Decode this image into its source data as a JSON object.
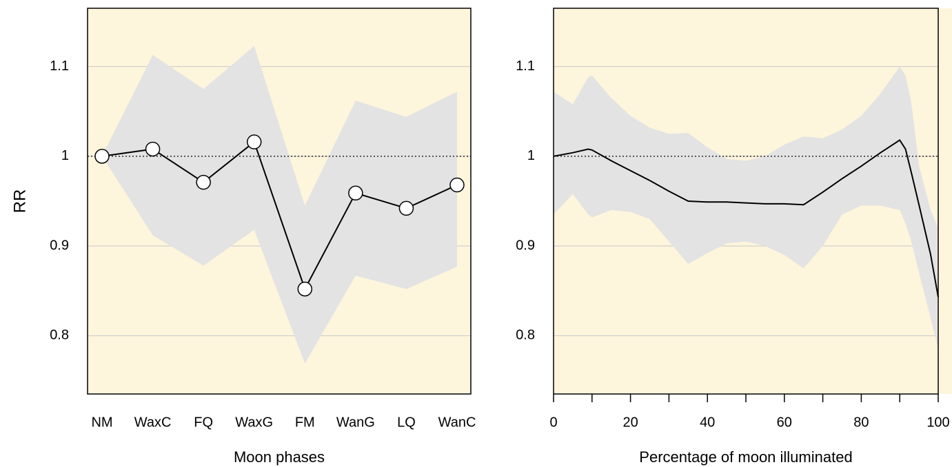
{
  "chart_data": [
    {
      "type": "line",
      "xlabel": "Moon phases",
      "ylabel": "RR",
      "categories": [
        "NM",
        "WaxC",
        "FQ",
        "WaxG",
        "FM",
        "WanG",
        "LQ",
        "WanC"
      ],
      "values": [
        1.0,
        1.008,
        0.971,
        1.016,
        0.852,
        0.959,
        0.942,
        0.968
      ],
      "lower": [
        1.0,
        0.912,
        0.878,
        0.918,
        0.769,
        0.867,
        0.852,
        0.877
      ],
      "upper": [
        1.0,
        1.113,
        1.075,
        1.123,
        0.945,
        1.062,
        1.044,
        1.072
      ],
      "color": "#000000",
      "band_color": "#e3e3e3",
      "background": "#fdf5dc",
      "markers": true,
      "hline": 1.0,
      "ylim": [
        0.735,
        1.165
      ],
      "yticks": [
        0.8,
        0.9,
        1.0,
        1.1
      ],
      "grid": true
    },
    {
      "type": "line",
      "xlabel": "Percentage of moon illuminated",
      "x": [
        0,
        5,
        9,
        10,
        15,
        20,
        25,
        30,
        35,
        40,
        45,
        50,
        55,
        60,
        65,
        70,
        75,
        80,
        85,
        90,
        91.5,
        93,
        95,
        98,
        100
      ],
      "values": [
        1.0,
        1.004,
        1.008,
        1.007,
        0.995,
        0.984,
        0.973,
        0.961,
        0.95,
        0.949,
        0.949,
        0.948,
        0.947,
        0.947,
        0.946,
        0.96,
        0.975,
        0.989,
        1.004,
        1.018,
        1.008,
        0.982,
        0.946,
        0.891,
        0.843
      ],
      "lower": [
        0.935,
        0.958,
        0.935,
        0.932,
        0.94,
        0.938,
        0.93,
        0.905,
        0.88,
        0.892,
        0.903,
        0.905,
        0.9,
        0.89,
        0.875,
        0.9,
        0.935,
        0.945,
        0.945,
        0.94,
        0.925,
        0.905,
        0.87,
        0.82,
        0.785
      ],
      "upper": [
        1.072,
        1.058,
        1.088,
        1.09,
        1.065,
        1.045,
        1.032,
        1.025,
        1.026,
        1.01,
        0.997,
        0.995,
        1.0,
        1.013,
        1.022,
        1.02,
        1.03,
        1.045,
        1.07,
        1.1,
        1.09,
        1.06,
        0.99,
        0.94,
        0.92
      ],
      "color": "#000000",
      "band_color": "#e3e3e3",
      "background": "#fdf5dc",
      "markers": false,
      "hline": 1.0,
      "xlim": [
        0,
        100
      ],
      "xticks": [
        0,
        20,
        40,
        60,
        80,
        100
      ],
      "xminor": [
        10,
        30,
        50,
        70,
        90
      ],
      "ylim": [
        0.735,
        1.165
      ],
      "yticks": [
        0.8,
        0.9,
        1.0,
        1.1
      ],
      "grid": true
    }
  ]
}
